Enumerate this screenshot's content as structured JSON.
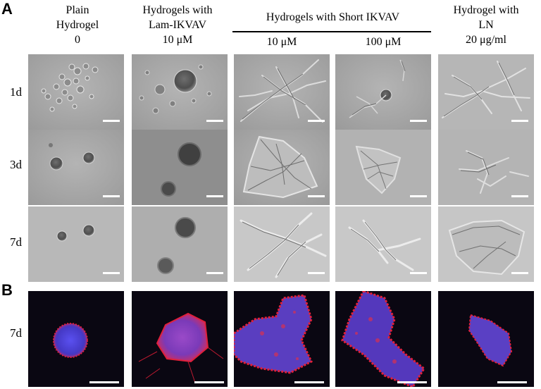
{
  "panels": {
    "a": "A",
    "b": "B"
  },
  "columns": [
    {
      "line1": "Plain",
      "line2": "Hydrogel",
      "conc": "0"
    },
    {
      "line1": "Hydrogels with",
      "line2": "Lam-IKVAV",
      "conc": "10 μM"
    },
    {
      "line1": "",
      "line2": "",
      "conc": "10 μM"
    },
    {
      "line1": "",
      "line2": "",
      "conc": "100 μM"
    },
    {
      "line1": "Hydrogel with",
      "line2": "LN",
      "conc": "20 μg/ml"
    }
  ],
  "group_header": "Hydrogels with Short IKVAV",
  "rows_a": [
    "1d",
    "3d",
    "7d"
  ],
  "row_b": "7d",
  "colors": {
    "brightfield_bg": "#a9a9a9",
    "fluor_bg": "#0a0712",
    "nucleus": "#4a3fd8",
    "actin": "#e0203a",
    "scalebar": "#ffffff"
  }
}
